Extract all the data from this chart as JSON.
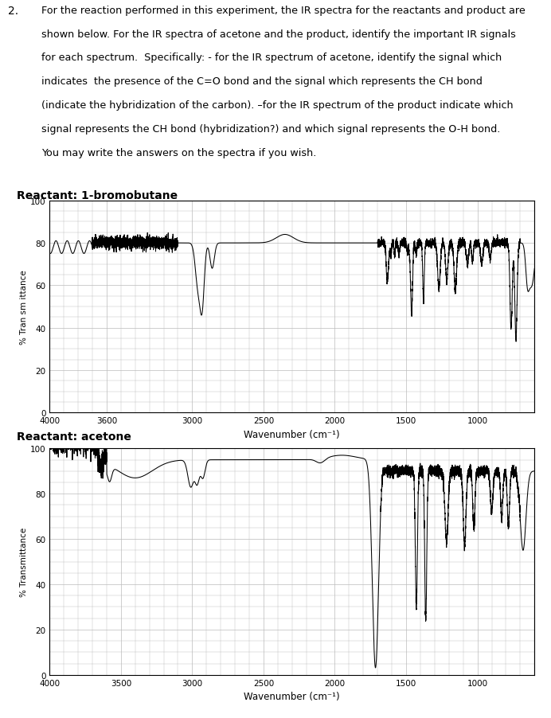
{
  "title_number": "2.",
  "reactant1_label": "Reactant: 1-bromobutane",
  "reactant2_label": "Reactant: acetone",
  "ylabel1": "% Tran sm ittance",
  "ylabel2": "% Transmittance",
  "xlabel1": "Wavenumber (cm⁻¹)",
  "xlabel2": "Wavenumber (cm⁻¹)",
  "grid_color": "#bbbbbb",
  "line_color": "#000000",
  "background_color": "#ffffff",
  "text_lines": [
    "For the reaction performed in this experiment, the IR spectra for the reactants and product are",
    "shown below. For the IR spectra of acetone and the product, identify the important IR signals",
    "for each spectrum.  Specifically: - for the IR spectrum of acetone, identify the signal which",
    "indicates  the presence of the C=O bond and the signal which represents the CH bond",
    "(indicate the hybridization of the carbon). –for the IR spectrum of the product indicate which",
    "signal represents the CH bond (hybridization?) and which signal represents the O-H bond.",
    "You may write the answers on the spectra if you wish."
  ]
}
